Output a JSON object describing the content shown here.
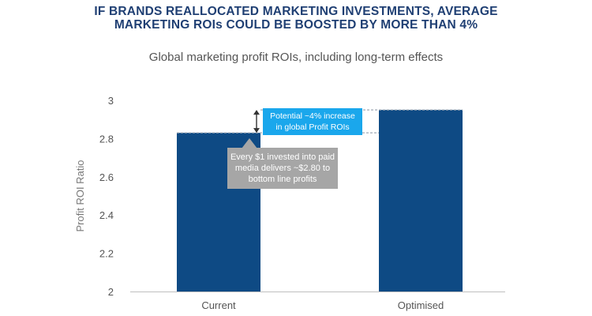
{
  "headline": {
    "line1": "IF BRANDS REALLOCATED MARKETING INVESTMENTS, AVERAGE",
    "line2": "MARKETING ROIs COULD BE BOOSTED BY MORE THAN 4%"
  },
  "chart_data": {
    "type": "bar",
    "title": "Global marketing profit ROIs, including long-term effects",
    "xlabel": "",
    "ylabel": "Profit ROI Ratio",
    "categories": [
      "Current",
      "Optimised"
    ],
    "values": [
      2.83,
      2.95
    ],
    "ylim": [
      2,
      3
    ],
    "yticks": [
      2,
      2.2,
      2.4,
      2.6,
      2.8,
      3
    ],
    "ytick_labels": [
      "2",
      "2.2",
      "2.4",
      "2.6",
      "2.8",
      "3"
    ],
    "grid": false,
    "bar_color": "#0e4a84",
    "annotations": {
      "increase_line1": "Potential ~4% increase",
      "increase_line2": "in global Profit ROIs",
      "invest_line1": "Every $1 invested into paid",
      "invest_line2": "media delivers ~$2.80 to",
      "invest_line3": "bottom line profits"
    },
    "annotation_colors": {
      "increase_box": "#1aa7ec",
      "invest_box": "#a6a6a6"
    }
  }
}
